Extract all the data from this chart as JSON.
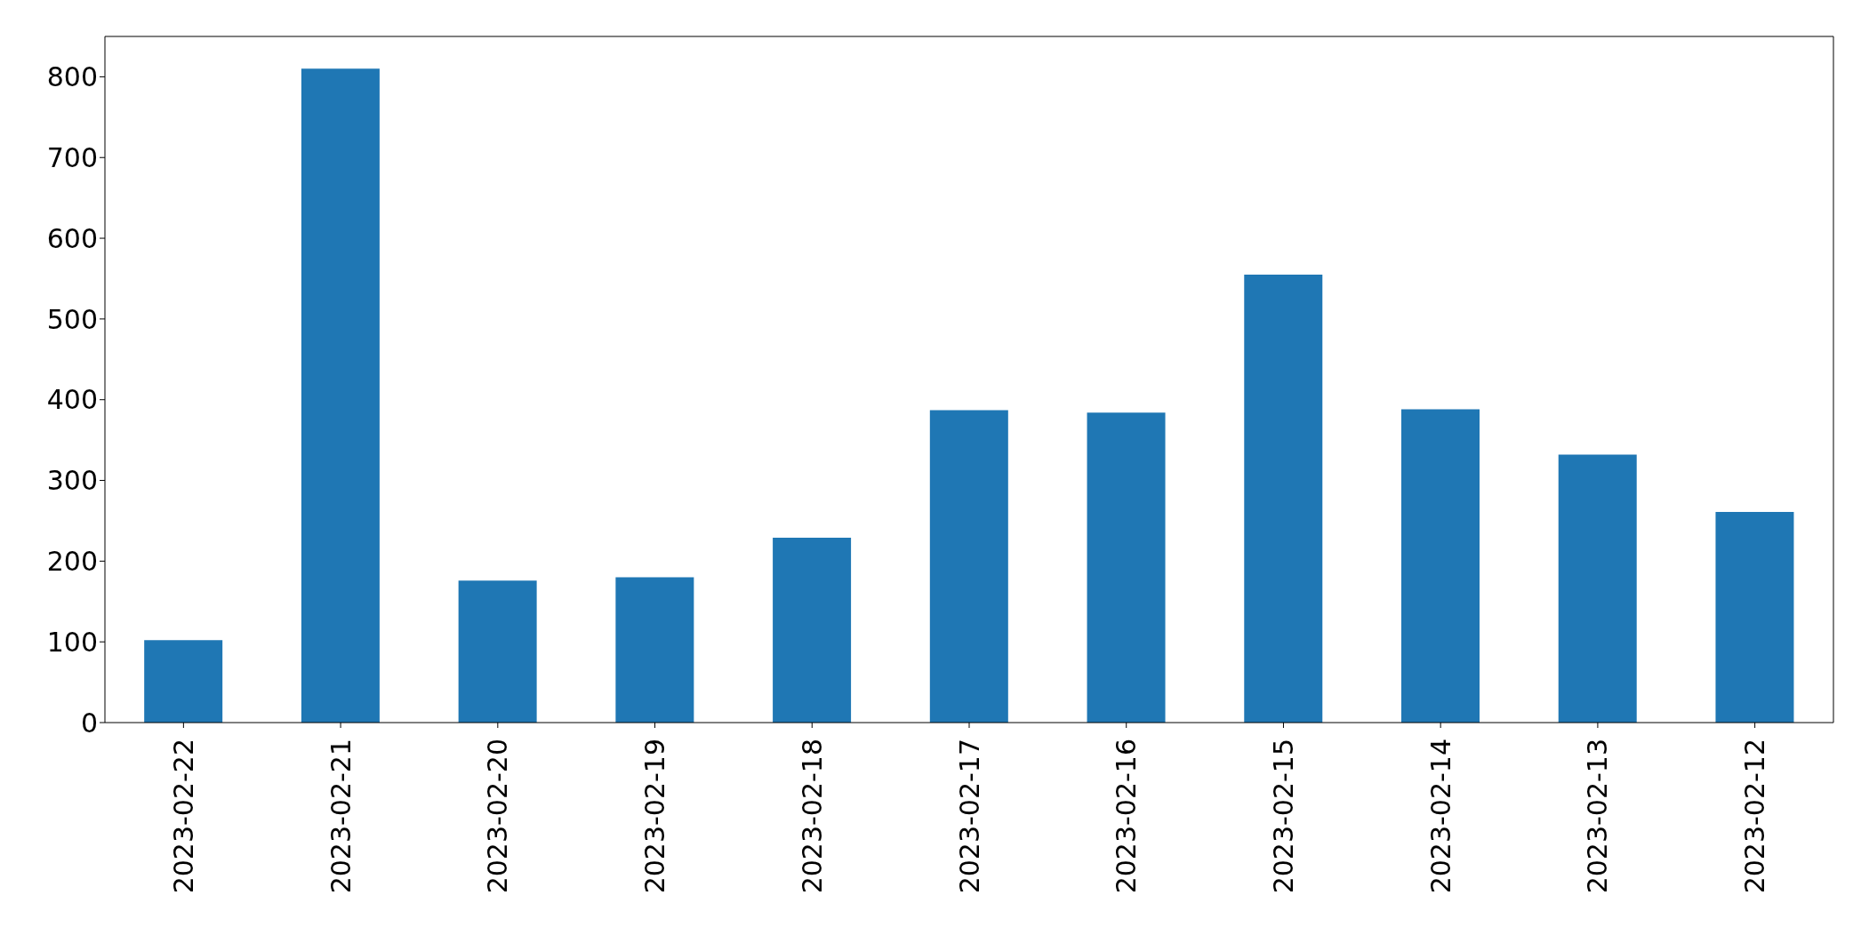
{
  "chart_data": {
    "type": "bar",
    "categories": [
      "2023-02-22",
      "2023-02-21",
      "2023-02-20",
      "2023-02-19",
      "2023-02-18",
      "2023-02-17",
      "2023-02-16",
      "2023-02-15",
      "2023-02-14",
      "2023-02-13",
      "2023-02-12"
    ],
    "values": [
      102,
      810,
      176,
      180,
      229,
      387,
      384,
      555,
      388,
      332,
      261
    ],
    "color": "#1f77b4",
    "ylim": [
      0,
      850
    ],
    "yticks": [
      0,
      100,
      200,
      300,
      400,
      500,
      600,
      700,
      800
    ],
    "grid": false
  }
}
